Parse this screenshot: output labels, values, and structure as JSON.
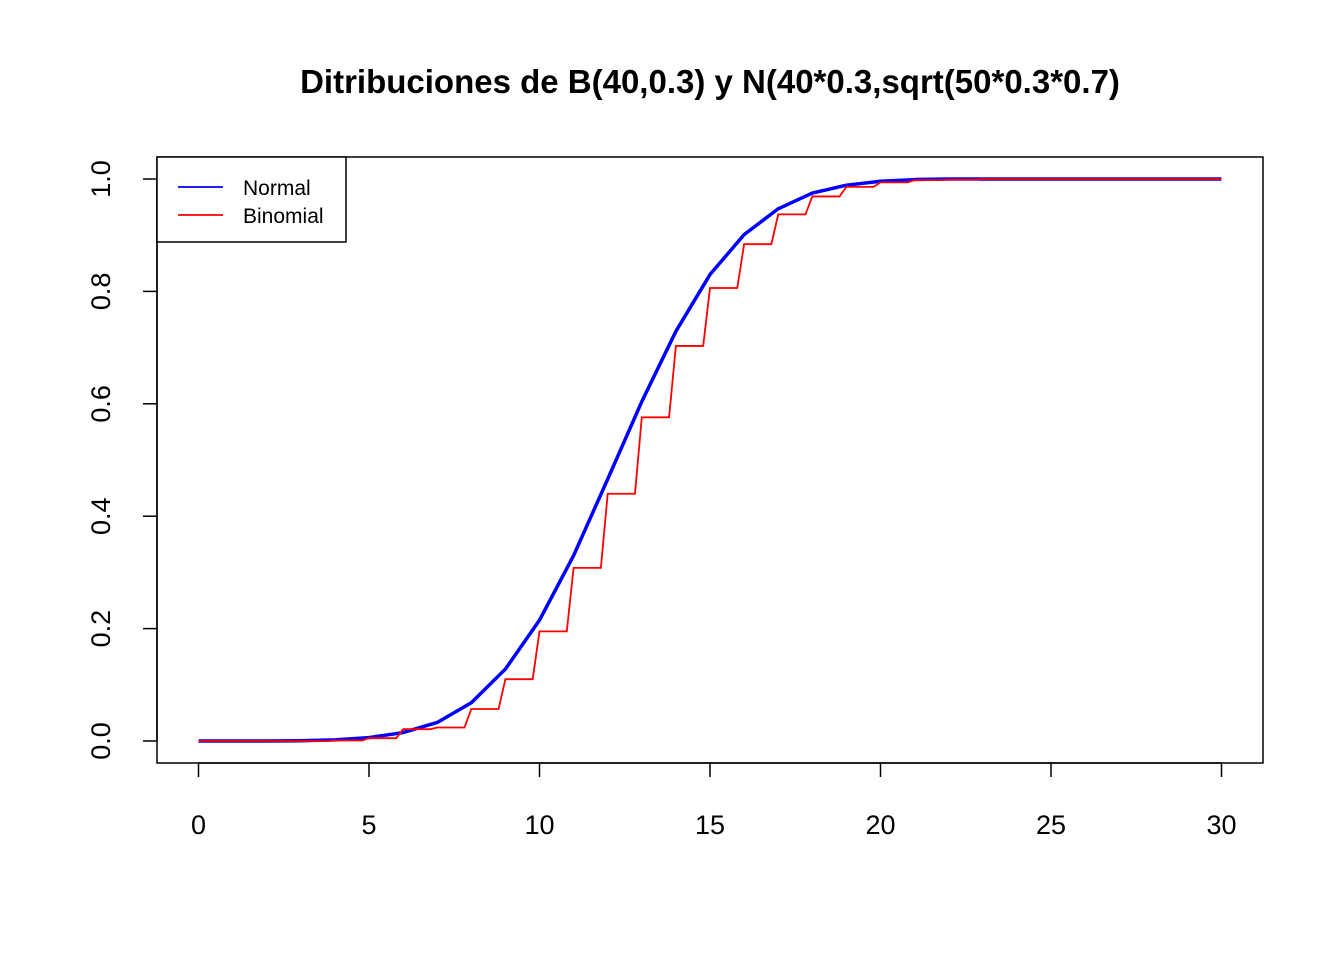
{
  "chart_data": {
    "type": "line",
    "title": "Ditribuciones de B(40,0.3) y N(40*0.3,sqrt(50*0.3*0.7)",
    "xlabel": "",
    "ylabel": "",
    "xlim": [
      0,
      30
    ],
    "ylim": [
      0,
      1
    ],
    "x_ticks": [
      0,
      5,
      10,
      15,
      20,
      25,
      30
    ],
    "y_ticks": [
      0.0,
      0.2,
      0.4,
      0.6,
      0.8,
      1.0
    ],
    "x_tick_labels": [
      "0",
      "5",
      "10",
      "15",
      "20",
      "25",
      "30"
    ],
    "y_tick_labels": [
      "0.0",
      "0.2",
      "0.4",
      "0.6",
      "0.8",
      "1.0"
    ],
    "grid": false,
    "legend": {
      "position": "top-left",
      "entries": [
        "Normal",
        "Binomial"
      ]
    },
    "colors": {
      "normal": "#0000ff",
      "binomial": "#ff0000"
    },
    "series": [
      {
        "name": "Normal",
        "kind": "smooth",
        "x": [
          0,
          1,
          2,
          3,
          4,
          5,
          6,
          7,
          8,
          9,
          10,
          11,
          12,
          13,
          14,
          15,
          16,
          17,
          18,
          19,
          20,
          21,
          22,
          23,
          24,
          25,
          26,
          27,
          28,
          29,
          30
        ],
        "y": [
          0.0,
          0.0,
          0.0,
          0.0005,
          0.002,
          0.006,
          0.015,
          0.033,
          0.068,
          0.128,
          0.215,
          0.33,
          0.466,
          0.604,
          0.729,
          0.83,
          0.901,
          0.947,
          0.975,
          0.989,
          0.996,
          0.999,
          1.0,
          1.0,
          1.0,
          1.0,
          1.0,
          1.0,
          1.0,
          1.0,
          1.0
        ]
      },
      {
        "name": "Binomial",
        "kind": "step",
        "x": [
          0,
          1,
          2,
          3,
          4,
          5,
          6,
          7,
          8,
          9,
          10,
          11,
          12,
          13,
          14,
          15,
          16,
          17,
          18,
          19,
          20,
          21,
          22,
          23,
          24,
          25,
          26,
          27,
          28,
          29,
          30
        ],
        "y": [
          0.0,
          0.0,
          0.0,
          0.0,
          0.001,
          0.005,
          0.021,
          0.024,
          0.057,
          0.11,
          0.195,
          0.308,
          0.44,
          0.576,
          0.703,
          0.806,
          0.884,
          0.937,
          0.969,
          0.986,
          0.994,
          0.998,
          0.999,
          1.0,
          1.0,
          1.0,
          1.0,
          1.0,
          1.0,
          1.0,
          1.0
        ]
      }
    ]
  }
}
